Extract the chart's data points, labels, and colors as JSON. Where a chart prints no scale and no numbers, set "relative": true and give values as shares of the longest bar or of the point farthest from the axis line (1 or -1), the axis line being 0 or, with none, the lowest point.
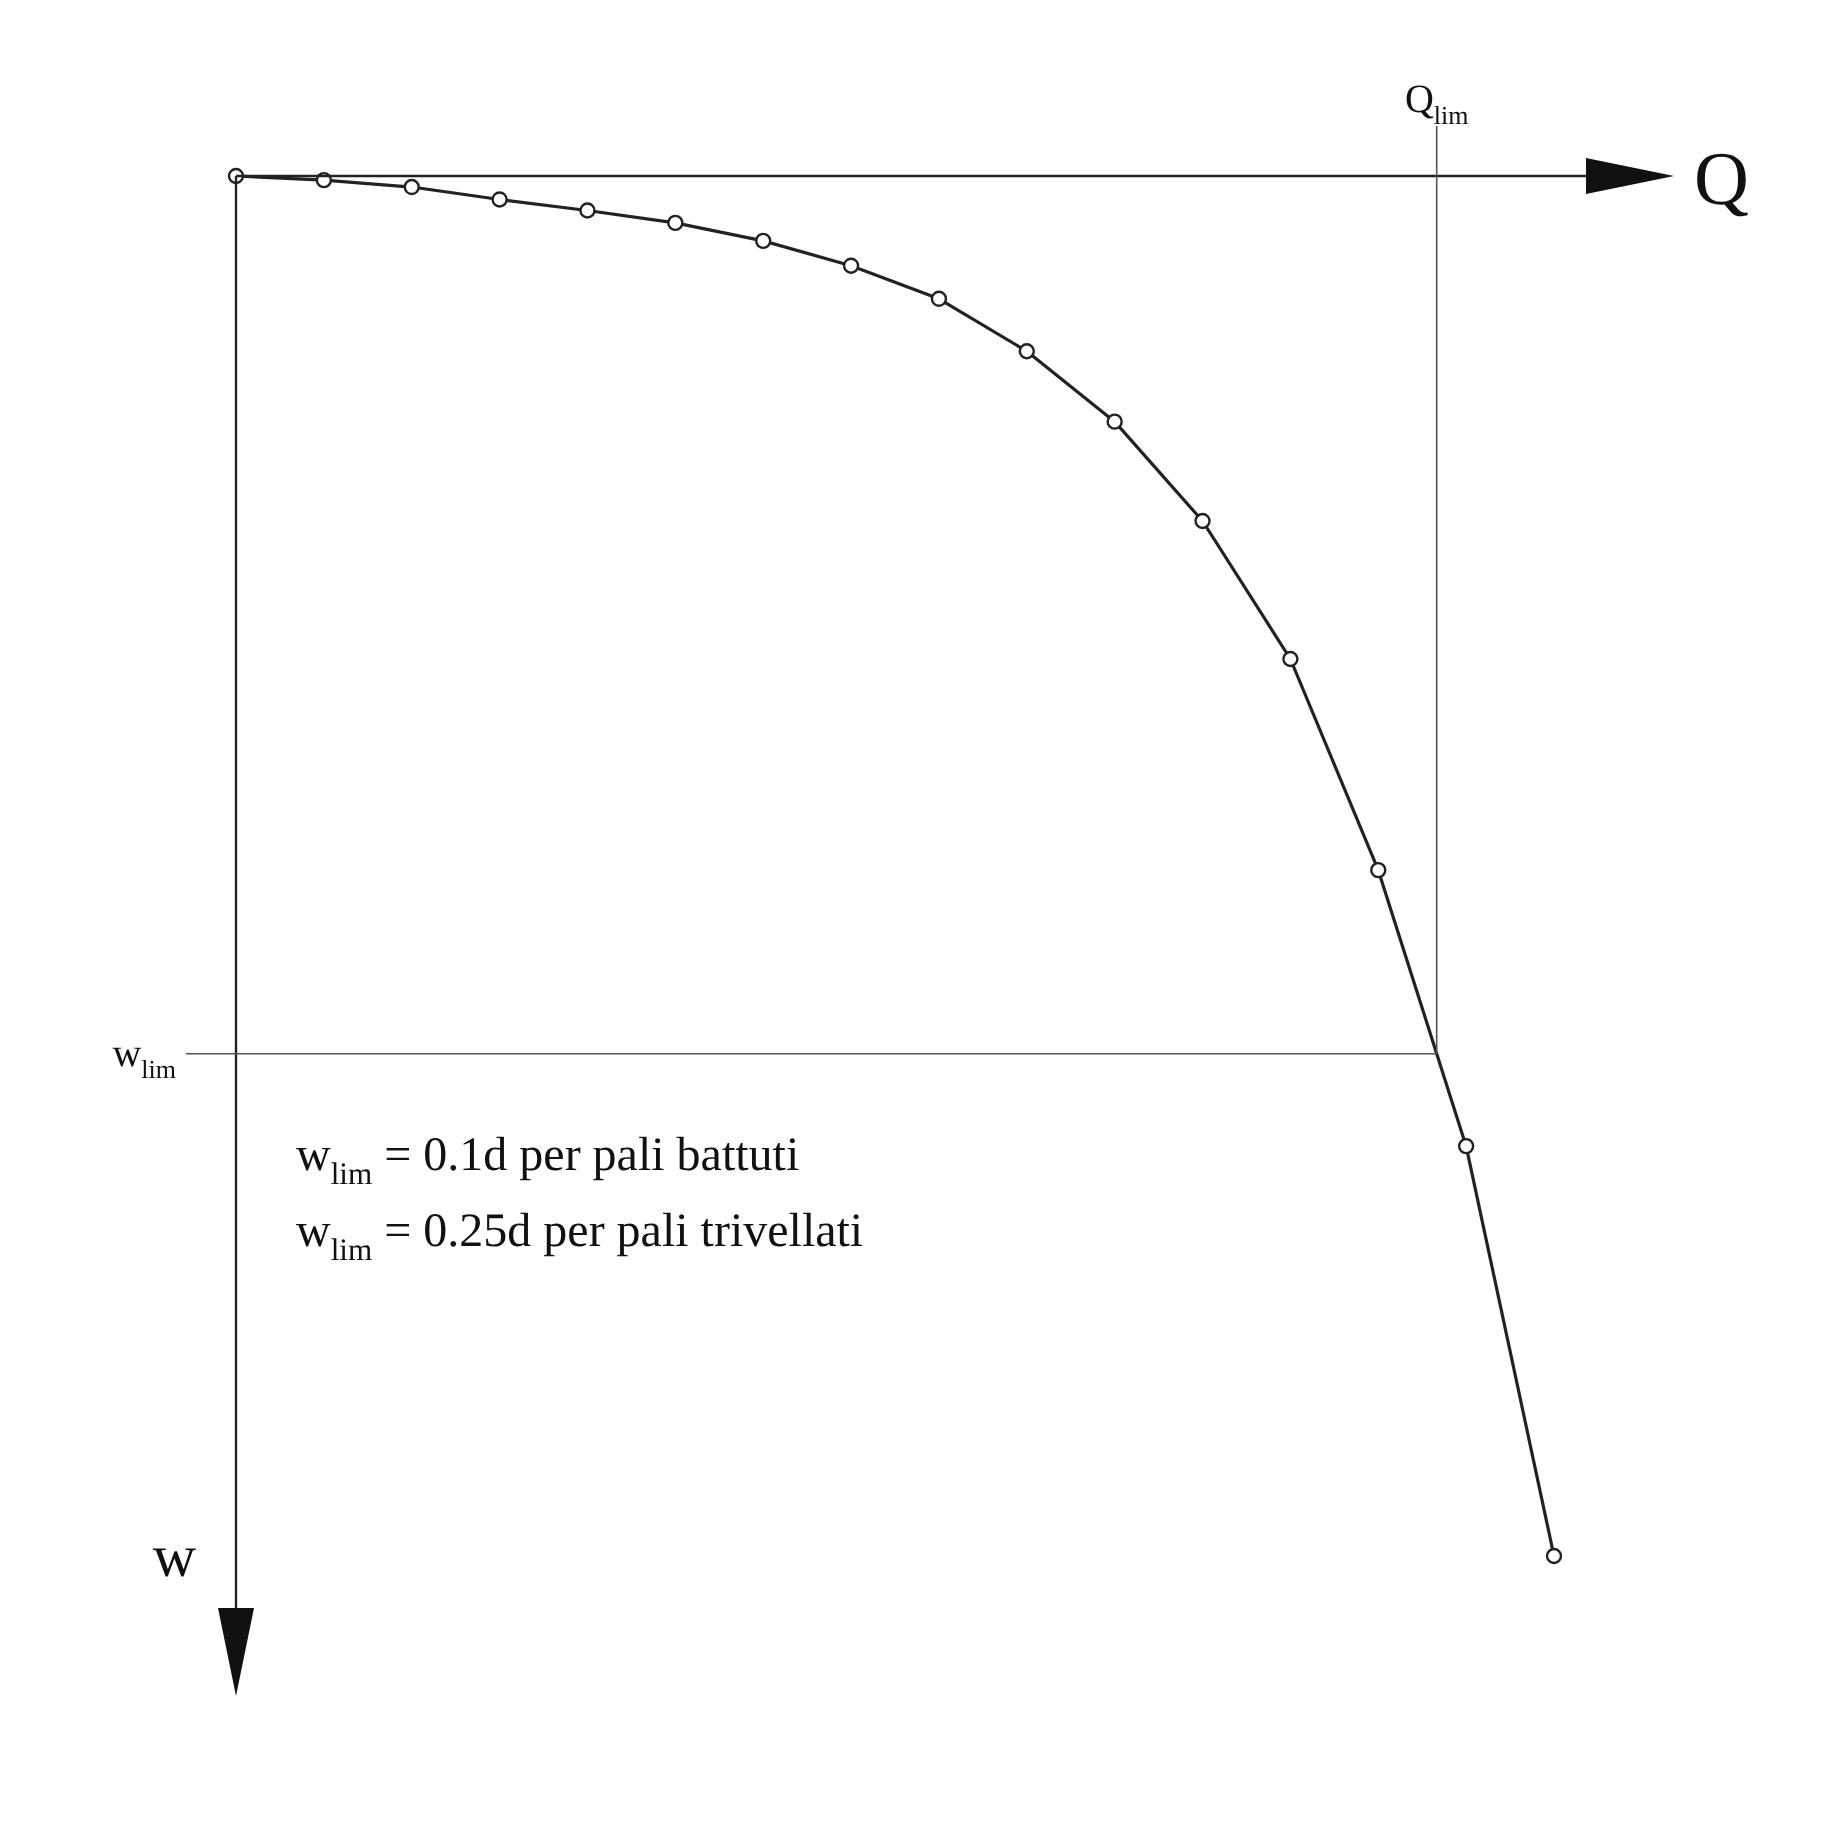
{
  "chart_data": {
    "type": "line",
    "relative": true,
    "xlabel": "Q",
    "ylabel": "w",
    "categories": [
      null,
      null,
      null,
      null,
      null,
      null,
      null,
      null,
      null,
      null,
      null,
      null,
      null,
      null,
      null,
      null
    ],
    "series": [
      {
        "color": "#222222",
        "values": [
          0,
          -0.003,
          -0.008,
          -0.017,
          -0.025,
          -0.034,
          -0.047,
          -0.065,
          -0.089,
          -0.127,
          -0.178,
          -0.25,
          -0.35,
          -0.503,
          -0.703,
          -1
        ]
      }
    ],
    "ref_lines": [
      {
        "axis": "y",
        "value": -0.636,
        "label": "w$_{lim}$",
        "color": "#555555"
      }
    ],
    "annotations": [
      "Q$_{lim}$",
      "w$_{lim}$ = 0.1d per pali battuti",
      "w$_{lim}$ = 0.25d per pali trivellati"
    ],
    "marker": "circle",
    "line_style": "solid",
    "legend": false
  }
}
